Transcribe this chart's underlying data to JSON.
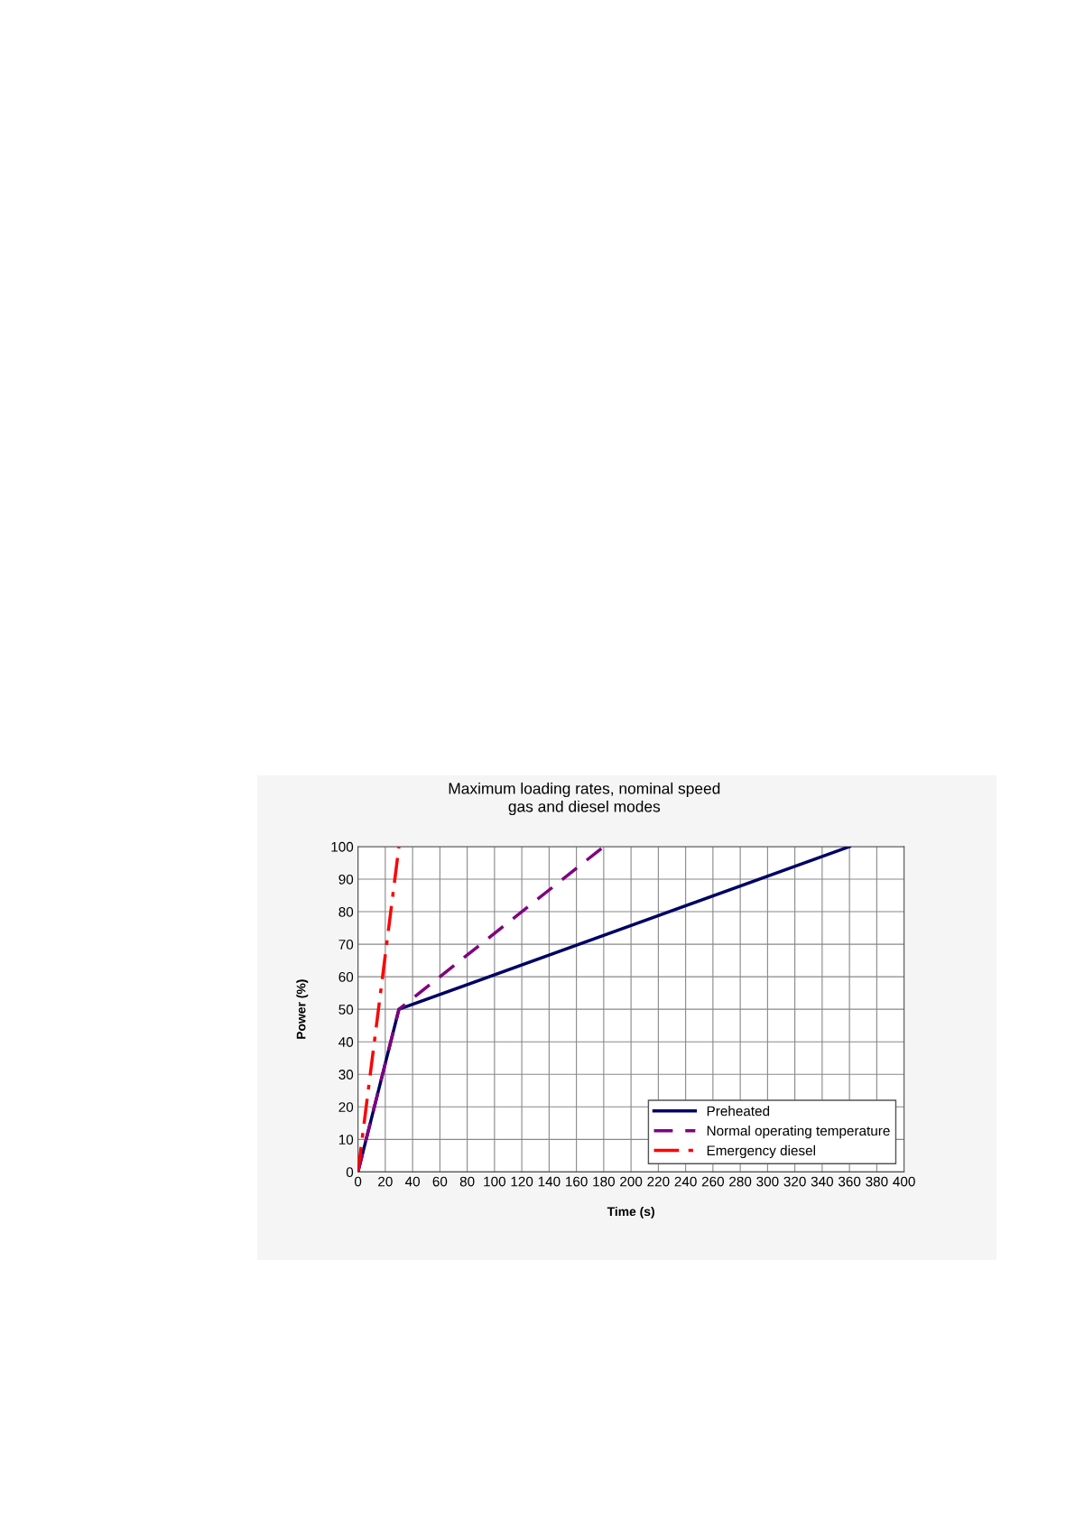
{
  "chart_data": {
    "type": "line",
    "title": "Maximum loading rates, nominal speed",
    "subtitle": "gas and diesel modes",
    "xlabel": "Time (s)",
    "ylabel": "Power (%)",
    "xlim": [
      0,
      400
    ],
    "xticks": [
      0,
      20,
      40,
      60,
      80,
      100,
      120,
      140,
      160,
      180,
      200,
      220,
      240,
      260,
      280,
      300,
      320,
      340,
      360,
      380,
      400
    ],
    "ylim": [
      0,
      100
    ],
    "yticks": [
      0,
      10,
      20,
      30,
      40,
      50,
      60,
      70,
      80,
      90,
      100
    ],
    "grid": true,
    "legend": "bottom right",
    "marker": "none",
    "series": [
      {
        "name": "Preheated",
        "color": "#000066",
        "line_style": "solid",
        "x": [
          0,
          30,
          360
        ],
        "values": [
          0,
          50,
          100
        ]
      },
      {
        "name": "Normal operating temperature",
        "color": "#800080",
        "line_style": "dashed",
        "x": [
          0,
          30,
          180
        ],
        "values": [
          0,
          50,
          100
        ]
      },
      {
        "name": "Emergency diesel",
        "color": "#ff0000",
        "line_style": "dashdot",
        "x": [
          0,
          30
        ],
        "values": [
          0,
          100
        ]
      }
    ]
  }
}
